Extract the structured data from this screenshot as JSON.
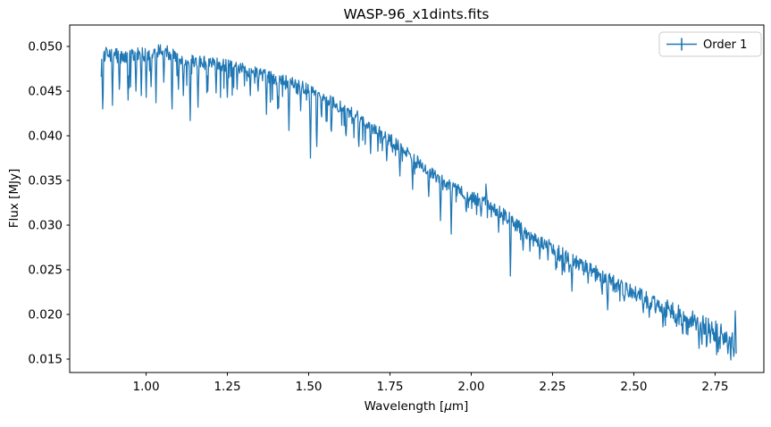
{
  "chart_data": {
    "type": "line",
    "title": "WASP-96_x1dints.fits",
    "xlabel": "Wavelength [μm]",
    "xlabel_parts": [
      {
        "text": "Wavelength [",
        "italic": false
      },
      {
        "text": "μ",
        "italic": true
      },
      {
        "text": "m]",
        "italic": false
      }
    ],
    "ylabel": "Flux [MJy]",
    "legend": {
      "label": "Order 1",
      "position": "upper right"
    },
    "line_color": "#1f77b4",
    "grid": false,
    "xlim": [
      0.765,
      2.9
    ],
    "ylim": [
      0.0135,
      0.0524
    ],
    "x_ticks": [
      1.0,
      1.25,
      1.5,
      1.75,
      2.0,
      2.25,
      2.5,
      2.75
    ],
    "x_tick_labels": [
      "1.00",
      "1.25",
      "1.50",
      "1.75",
      "2.00",
      "2.25",
      "2.50",
      "2.75"
    ],
    "y_ticks": [
      0.015,
      0.02,
      0.025,
      0.03,
      0.035,
      0.04,
      0.045,
      0.05
    ],
    "y_tick_labels": [
      "0.015",
      "0.020",
      "0.025",
      "0.030",
      "0.035",
      "0.040",
      "0.045",
      "0.050"
    ],
    "x_data_range": [
      0.862,
      2.815
    ],
    "series_name": "Order 1",
    "trend": [
      [
        0.862,
        0.0478
      ],
      [
        0.872,
        0.049
      ],
      [
        0.9,
        0.0491
      ],
      [
        0.93,
        0.0487
      ],
      [
        0.96,
        0.0489
      ],
      [
        1.0,
        0.0492
      ],
      [
        1.04,
        0.0496
      ],
      [
        1.07,
        0.0493
      ],
      [
        1.1,
        0.0488
      ],
      [
        1.13,
        0.0484
      ],
      [
        1.17,
        0.0482
      ],
      [
        1.2,
        0.0481
      ],
      [
        1.25,
        0.0478
      ],
      [
        1.3,
        0.0474
      ],
      [
        1.35,
        0.0469
      ],
      [
        1.4,
        0.0464
      ],
      [
        1.45,
        0.0459
      ],
      [
        1.5,
        0.0452
      ],
      [
        1.55,
        0.0441
      ],
      [
        1.6,
        0.0432
      ],
      [
        1.65,
        0.0421
      ],
      [
        1.7,
        0.0409
      ],
      [
        1.75,
        0.0396
      ],
      [
        1.8,
        0.0381
      ],
      [
        1.85,
        0.0366
      ],
      [
        1.9,
        0.0352
      ],
      [
        1.95,
        0.0341
      ],
      [
        2.0,
        0.0332
      ],
      [
        2.05,
        0.0324
      ],
      [
        2.1,
        0.0312
      ],
      [
        2.15,
        0.0297
      ],
      [
        2.2,
        0.0285
      ],
      [
        2.25,
        0.0273
      ],
      [
        2.3,
        0.0262
      ],
      [
        2.35,
        0.0252
      ],
      [
        2.4,
        0.0242
      ],
      [
        2.45,
        0.0232
      ],
      [
        2.5,
        0.0223
      ],
      [
        2.55,
        0.0214
      ],
      [
        2.6,
        0.0206
      ],
      [
        2.65,
        0.0198
      ],
      [
        2.7,
        0.019
      ],
      [
        2.75,
        0.0181
      ],
      [
        2.8,
        0.0171
      ],
      [
        2.815,
        0.0168
      ]
    ],
    "absorption_lines": [
      [
        0.866,
        0.043
      ],
      [
        0.896,
        0.0434
      ],
      [
        0.918,
        0.0452
      ],
      [
        0.945,
        0.044
      ],
      [
        0.968,
        0.045
      ],
      [
        0.985,
        0.0445
      ],
      [
        1.0,
        0.0443
      ],
      [
        1.015,
        0.0455
      ],
      [
        1.03,
        0.0437
      ],
      [
        1.055,
        0.046
      ],
      [
        1.08,
        0.043
      ],
      [
        1.1,
        0.0452
      ],
      [
        1.115,
        0.0445
      ],
      [
        1.135,
        0.0417
      ],
      [
        1.16,
        0.0432
      ],
      [
        1.19,
        0.045
      ],
      [
        1.215,
        0.0448
      ],
      [
        1.25,
        0.0443
      ],
      [
        1.28,
        0.0452
      ],
      [
        1.32,
        0.0445
      ],
      [
        1.345,
        0.045
      ],
      [
        1.37,
        0.0424
      ],
      [
        1.405,
        0.043
      ],
      [
        1.44,
        0.0406
      ],
      [
        1.475,
        0.0428
      ],
      [
        1.505,
        0.0375
      ],
      [
        1.525,
        0.0388
      ],
      [
        1.57,
        0.0405
      ],
      [
        1.615,
        0.04
      ],
      [
        1.655,
        0.0388
      ],
      [
        1.69,
        0.038
      ],
      [
        1.74,
        0.0372
      ],
      [
        1.78,
        0.0355
      ],
      [
        1.82,
        0.034
      ],
      [
        1.87,
        0.0332
      ],
      [
        1.905,
        0.0305
      ],
      [
        1.938,
        0.029
      ],
      [
        1.985,
        0.0315
      ],
      [
        2.03,
        0.031
      ],
      [
        2.085,
        0.0292
      ],
      [
        2.12,
        0.0243
      ],
      [
        2.16,
        0.0272
      ],
      [
        2.21,
        0.0262
      ],
      [
        2.26,
        0.025
      ],
      [
        2.31,
        0.0226
      ],
      [
        2.36,
        0.0235
      ],
      [
        2.42,
        0.0205
      ],
      [
        2.47,
        0.0215
      ],
      [
        2.53,
        0.0202
      ],
      [
        2.59,
        0.0186
      ],
      [
        2.65,
        0.018
      ],
      [
        2.7,
        0.0162
      ],
      [
        2.735,
        0.0168
      ],
      [
        2.76,
        0.0158
      ],
      [
        2.79,
        0.0156
      ],
      [
        2.808,
        0.0153
      ]
    ],
    "emission_spikes": [
      [
        2.045,
        0.0346
      ],
      [
        2.812,
        0.0204
      ]
    ],
    "noise": {
      "band": [
        [
          0.86,
          0.0009
        ],
        [
          1.3,
          0.0007
        ],
        [
          2.0,
          0.0007
        ],
        [
          2.5,
          0.001
        ],
        [
          2.8,
          0.0013
        ]
      ],
      "spike_probability": 0.13,
      "spike_depth": [
        [
          0.9,
          0.0032
        ],
        [
          1.5,
          0.0028
        ],
        [
          2.0,
          0.0022
        ],
        [
          2.5,
          0.002
        ],
        [
          2.8,
          0.0028
        ]
      ]
    }
  }
}
